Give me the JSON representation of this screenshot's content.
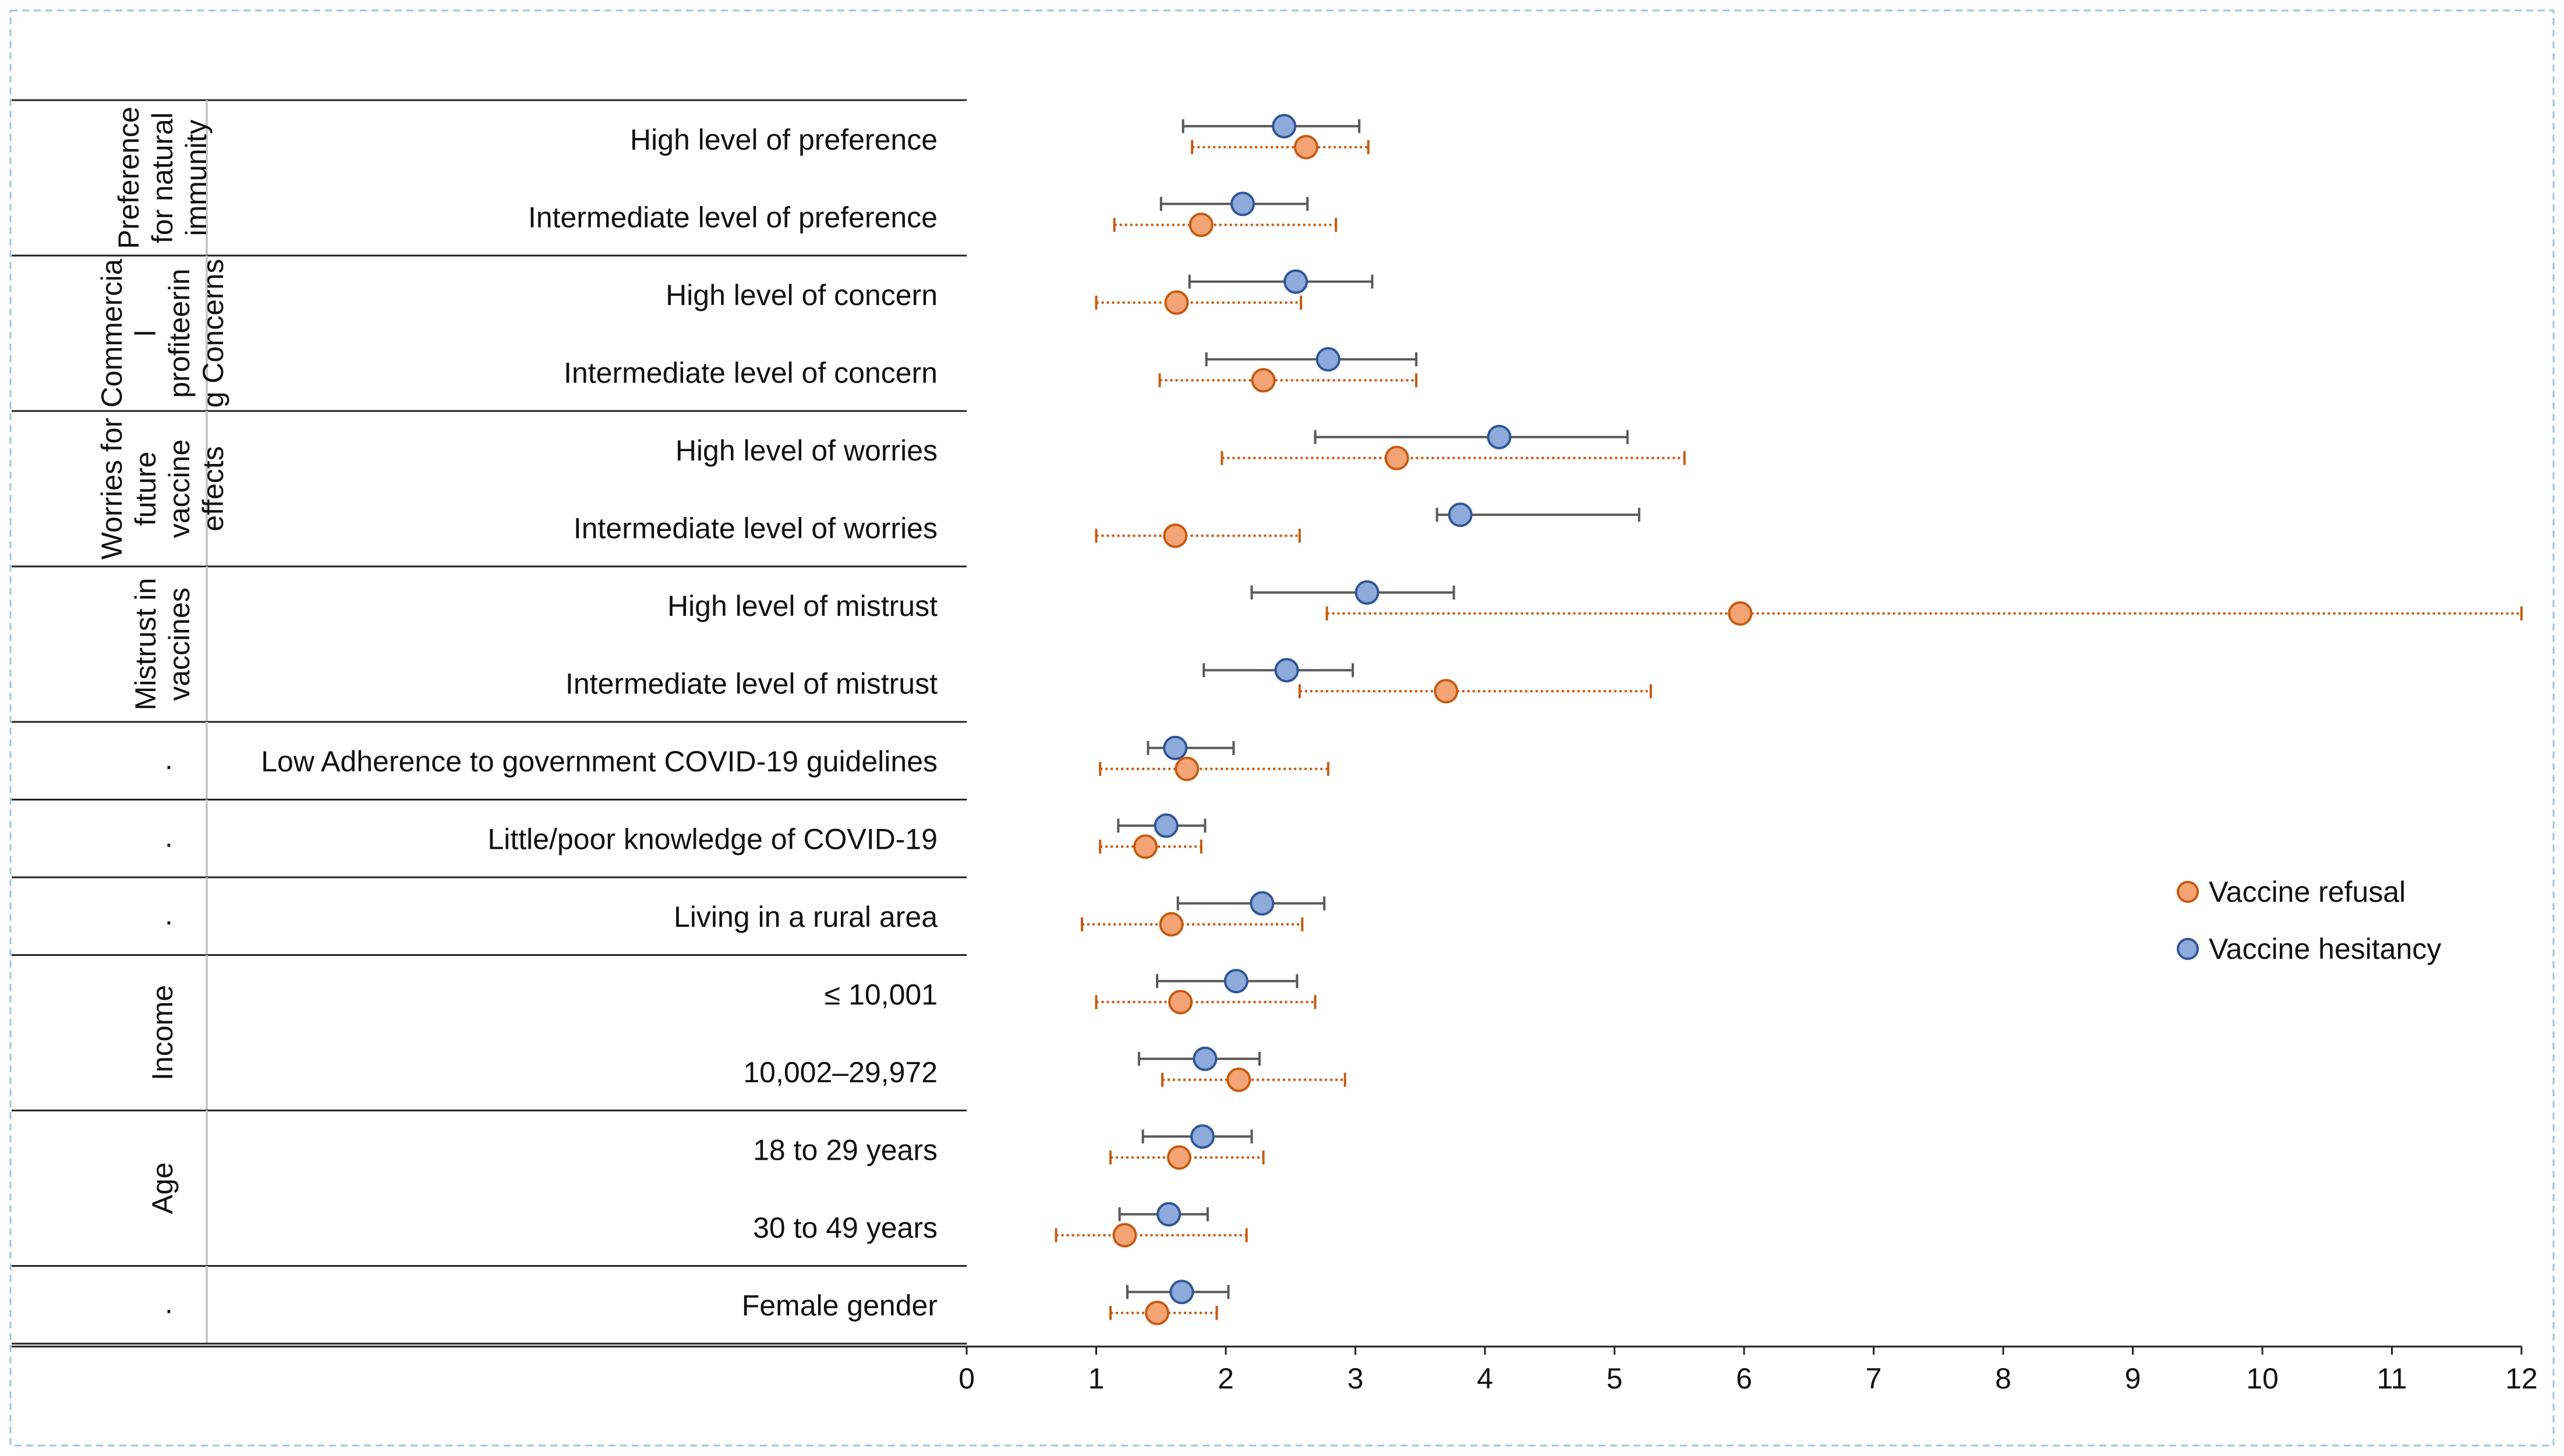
{
  "chart_data": {
    "type": "forest",
    "title": "",
    "xlim": [
      0,
      12
    ],
    "x_ticks": [
      "0",
      "1",
      "2",
      "3",
      "4",
      "5",
      "6",
      "7",
      "8",
      "9",
      "10",
      "11",
      "12"
    ],
    "colors": {
      "refusal": "#f4a474",
      "refusal_edge": "#c55a11",
      "hesitancy": "#8eaadb",
      "hesitancy_edge": "#2f5597",
      "error_hes": "#595959",
      "error_ref": "#c55a11"
    },
    "legend": [
      {
        "key": "refusal",
        "label": "Vaccine refusal"
      },
      {
        "key": "hesitancy",
        "label": "Vaccine hesitancy"
      }
    ],
    "groups": [
      {
        "lines": [
          "Preference",
          "for natural",
          "immunity"
        ],
        "rows": [
          {
            "label": "High level of preference",
            "hesitancy": [
              2.45,
              1.67,
              3.03
            ],
            "refusal": [
              2.62,
              1.74,
              3.1
            ]
          },
          {
            "label": "Intermediate level of preference",
            "hesitancy": [
              2.13,
              1.5,
              2.63
            ],
            "refusal": [
              1.81,
              1.14,
              2.85
            ]
          }
        ]
      },
      {
        "lines": [
          "Commercia",
          "l",
          "profiteerin",
          "g Concerns"
        ],
        "rows": [
          {
            "label": "High level of concern ",
            "hesitancy": [
              2.54,
              1.72,
              3.13
            ],
            "refusal": [
              1.62,
              1.0,
              2.58
            ]
          },
          {
            "label": "Intermediate level of concern",
            "hesitancy": [
              2.79,
              1.85,
              3.47
            ],
            "refusal": [
              2.29,
              1.49,
              3.47
            ]
          }
        ]
      },
      {
        "lines": [
          "Worries for",
          "future",
          "vaccine",
          "effects"
        ],
        "rows": [
          {
            "label": "High level of worries",
            "hesitancy": [
              4.11,
              2.69,
              5.1
            ],
            "refusal": [
              3.32,
              1.97,
              5.54
            ]
          },
          {
            "label": "Intermediate level of worries",
            "hesitancy": [
              3.81,
              3.63,
              5.19
            ],
            "refusal": [
              1.61,
              1.0,
              2.57
            ]
          }
        ]
      },
      {
        "lines": [
          "Mistrust in",
          "vaccines"
        ],
        "rows": [
          {
            "label": "High level of mistrust",
            "hesitancy": [
              3.09,
              2.2,
              3.76
            ],
            "refusal": [
              5.97,
              2.78,
              12.0
            ]
          },
          {
            "label": "Intermediate level of mistrust",
            "hesitancy": [
              2.47,
              1.83,
              2.98
            ],
            "refusal": [
              3.7,
              2.57,
              5.28
            ]
          }
        ]
      },
      {
        "lines": [
          "."
        ],
        "rows": [
          {
            "label": "Low Adherence to government COVID-19 guidelines",
            "hesitancy": [
              1.61,
              1.4,
              2.06
            ],
            "refusal": [
              1.7,
              1.03,
              2.79
            ]
          }
        ]
      },
      {
        "lines": [
          "."
        ],
        "rows": [
          {
            "label": "Little/poor knowledge of COVID-19",
            "hesitancy": [
              1.54,
              1.17,
              1.84
            ],
            "refusal": [
              1.38,
              1.03,
              1.81
            ]
          }
        ]
      },
      {
        "lines": [
          "."
        ],
        "rows": [
          {
            "label": "Living in a rural area",
            "hesitancy": [
              2.28,
              1.63,
              2.76
            ],
            "refusal": [
              1.58,
              0.89,
              2.59
            ]
          }
        ]
      },
      {
        "lines": [
          "Income"
        ],
        "rows": [
          {
            "label": "≤ 10,001",
            "hesitancy": [
              2.08,
              1.47,
              2.55
            ],
            "refusal": [
              1.65,
              1.0,
              2.69
            ]
          },
          {
            "label": "10,002–29,972",
            "hesitancy": [
              1.84,
              1.33,
              2.26
            ],
            "refusal": [
              2.1,
              1.51,
              2.92
            ]
          }
        ]
      },
      {
        "lines": [
          "Age"
        ],
        "rows": [
          {
            "label": "18 to 29 years",
            "hesitancy": [
              1.82,
              1.36,
              2.2
            ],
            "refusal": [
              1.64,
              1.11,
              2.29
            ]
          },
          {
            "label": "30 to 49 years",
            "hesitancy": [
              1.56,
              1.18,
              1.86
            ],
            "refusal": [
              1.22,
              0.69,
              2.16
            ]
          }
        ]
      },
      {
        "lines": [
          "."
        ],
        "rows": [
          {
            "label": "Female gender",
            "hesitancy": [
              1.66,
              1.24,
              2.02
            ],
            "refusal": [
              1.47,
              1.11,
              1.93
            ]
          }
        ]
      }
    ]
  }
}
